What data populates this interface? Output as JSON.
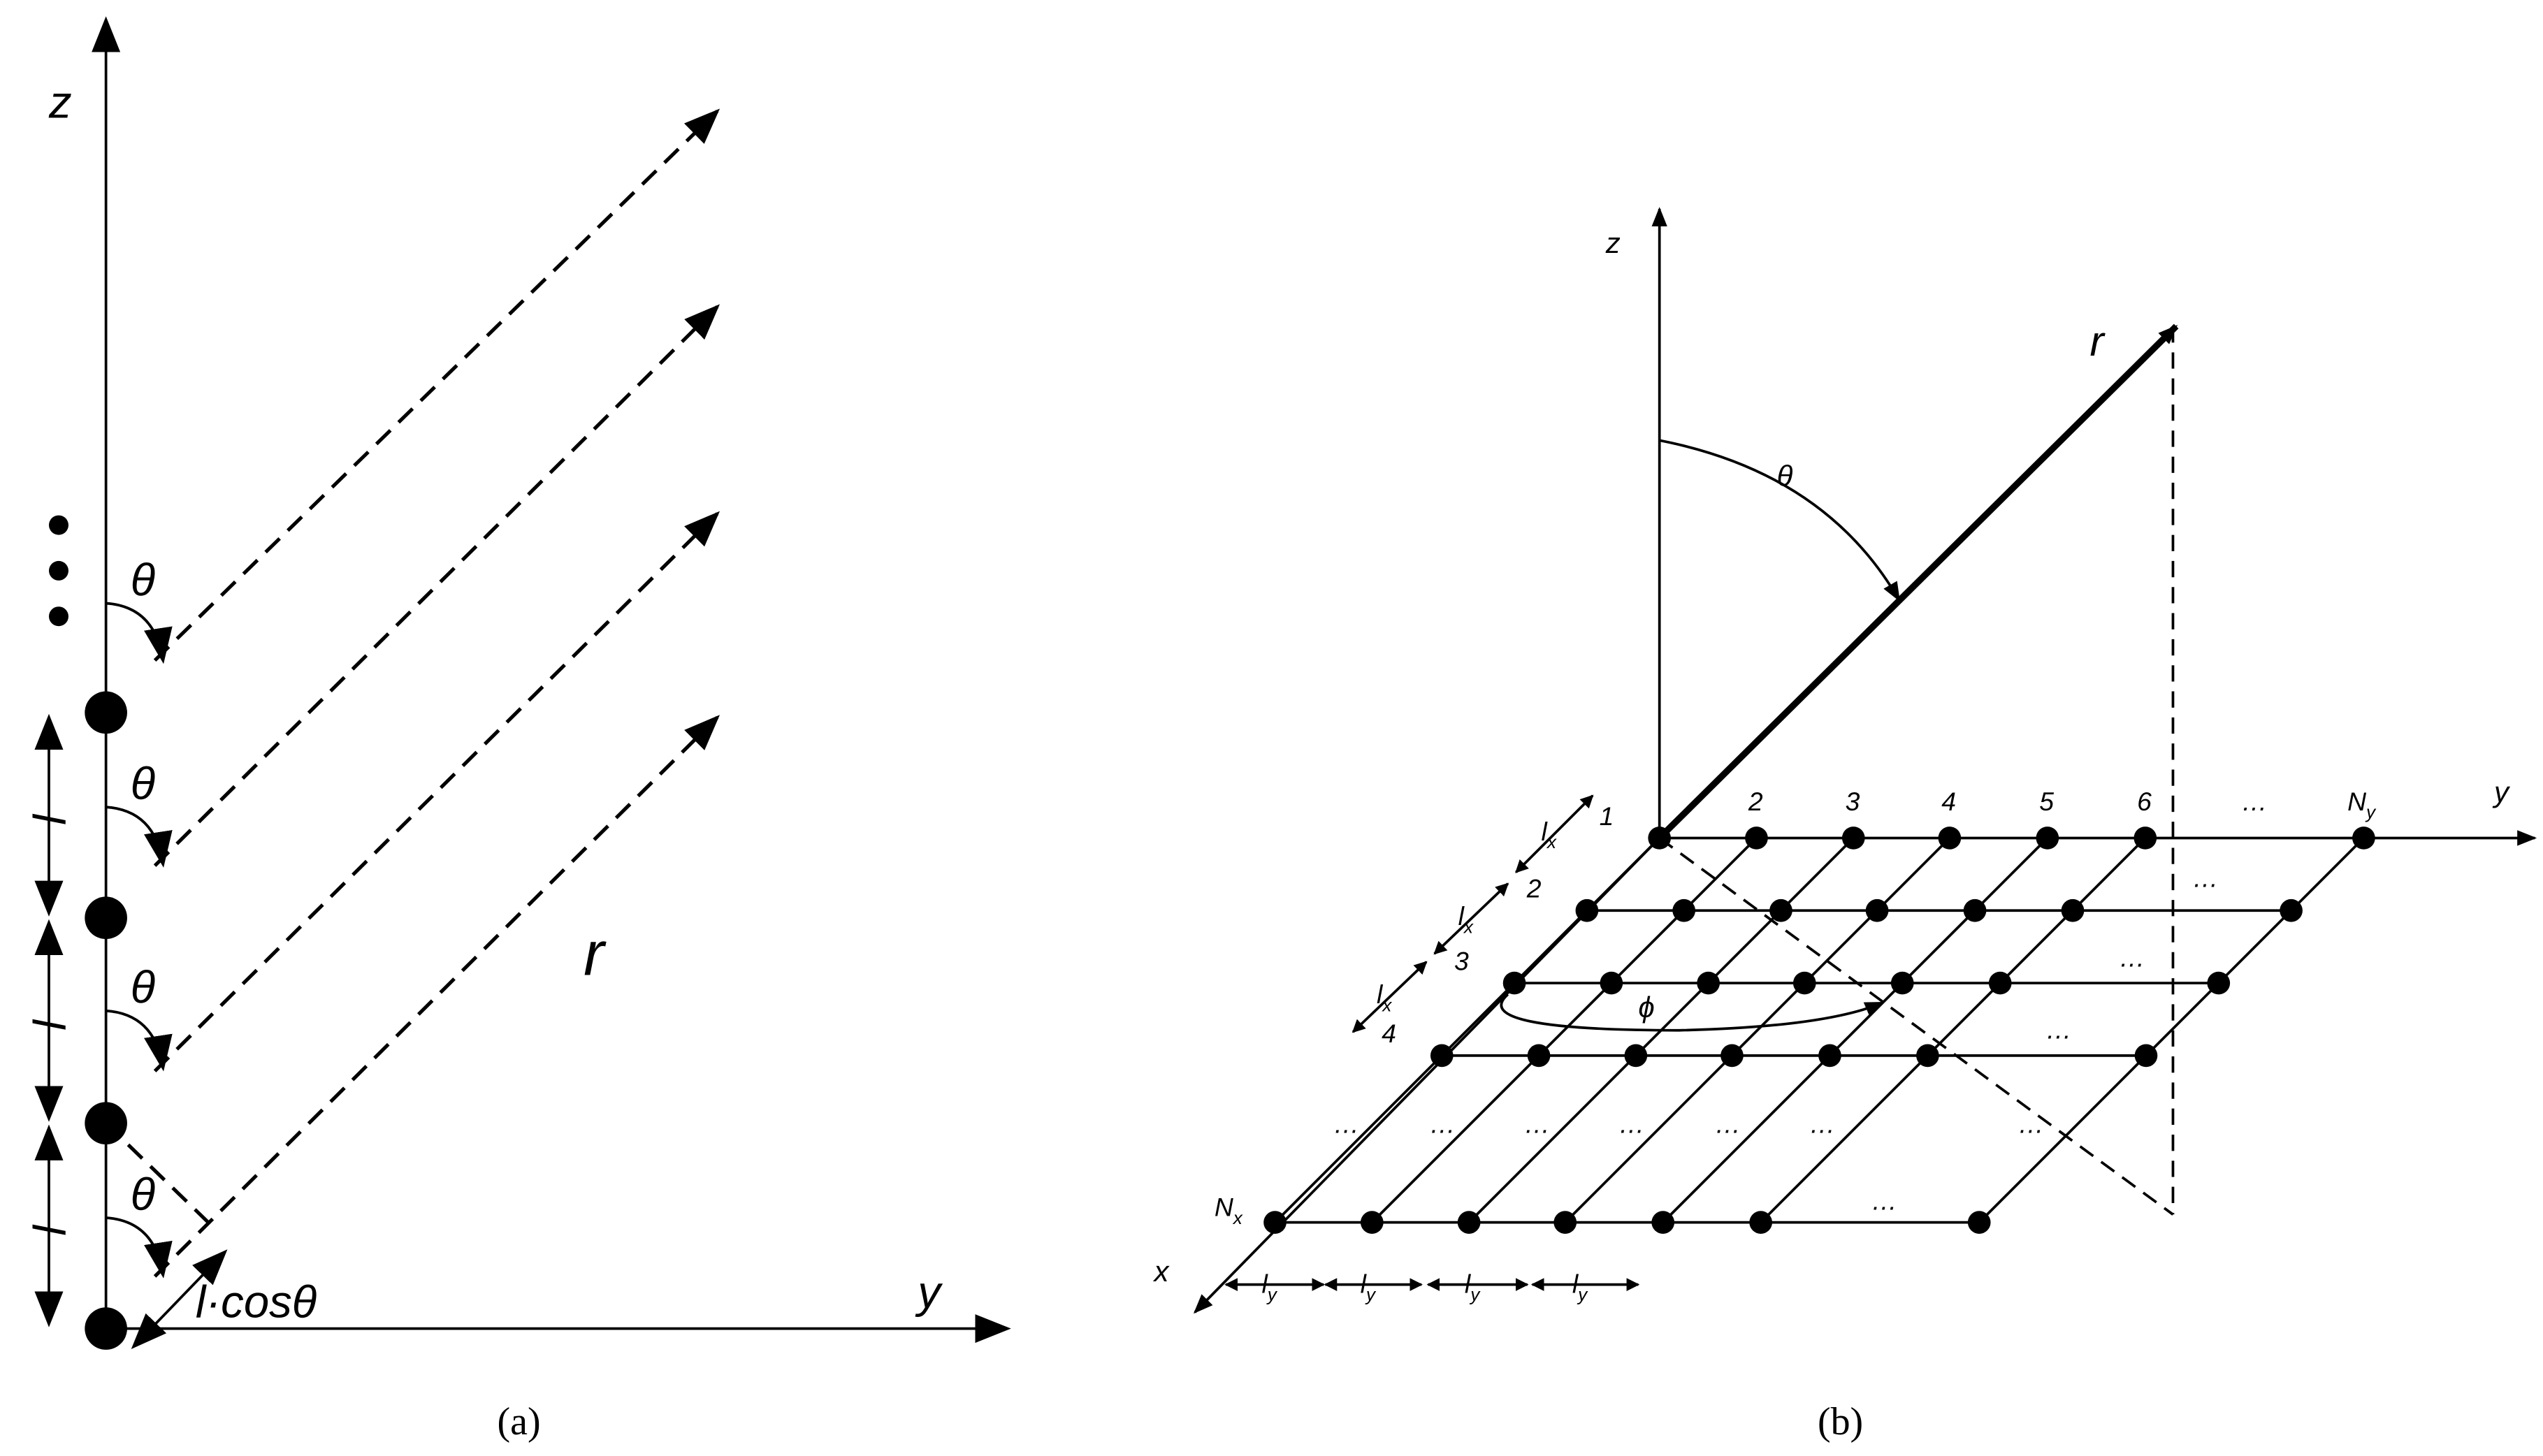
{
  "panel_a": {
    "caption": "(a)",
    "axis_z": "z",
    "axis_y": "y",
    "range_label": "r",
    "angle_label": "θ",
    "spacing_label": "l",
    "path_difference": "l·cosθ"
  },
  "panel_b": {
    "caption": "(b)",
    "axis_z": "z",
    "axis_y": "y",
    "axis_x": "x",
    "range_label": "r",
    "elevation_label": "θ",
    "azimuth_label": "ϕ",
    "ellipsis": "…",
    "row_labels": [
      "1",
      "2",
      "3",
      "4"
    ],
    "row_last": {
      "base": "N",
      "sub": "x"
    },
    "column_labels": [
      "2",
      "3",
      "4",
      "5",
      "6"
    ],
    "column_last": {
      "base": "N",
      "sub": "y"
    },
    "x_spacing": {
      "base": "l",
      "sub": "x"
    },
    "y_spacing": {
      "base": "l",
      "sub": "y"
    }
  }
}
